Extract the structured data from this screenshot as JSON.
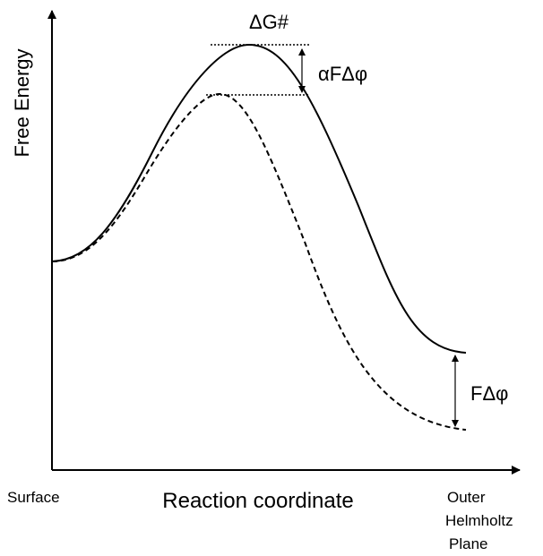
{
  "y_axis_label": "Free Energy",
  "x_axis_label": "Reaction coordinate",
  "x_start_label": "Surface",
  "x_end_label": [
    "Outer",
    "Helmholtz",
    "Plane"
  ],
  "annotations": {
    "activation": "ΔG#",
    "barrier_shift": "αFΔφ",
    "potential_shift": "FΔφ"
  }
}
